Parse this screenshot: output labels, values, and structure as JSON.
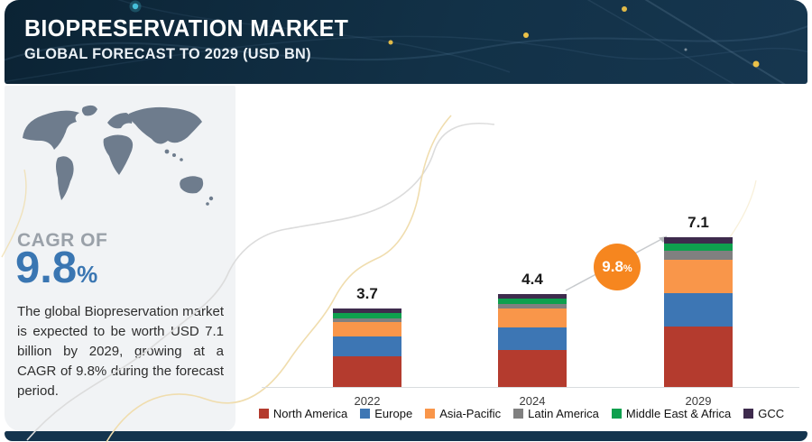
{
  "header": {
    "title": "BIOPRESERVATION MARKET",
    "subtitle": "GLOBAL FORECAST TO 2029 (USD BN)"
  },
  "sidebar": {
    "cagr_label": "CAGR OF",
    "cagr_value": "9.8",
    "cagr_unit": "%",
    "description": "The global Biopreservation market is expected to be worth USD 7.1 billion by 2029, growing at a CAGR of 9.8% during the forecast period."
  },
  "badge": {
    "value": "9.8",
    "unit": "%",
    "color": "#f6861f"
  },
  "chart_data": {
    "type": "bar",
    "stacked": true,
    "title": "Biopreservation Market, Global Forecast to 2029 (USD BN)",
    "xlabel": "",
    "ylabel": "USD BN",
    "grid": false,
    "legend_position": "bottom",
    "categories": [
      "2022",
      "2024",
      "2029"
    ],
    "totals": [
      3.7,
      4.4,
      7.1
    ],
    "series": [
      {
        "name": "North America",
        "color": "#b43b2e",
        "values": [
          1.44,
          1.75,
          2.88
        ]
      },
      {
        "name": "Europe",
        "color": "#3d76b4",
        "values": [
          0.94,
          1.07,
          1.56
        ]
      },
      {
        "name": "Asia-Pacific",
        "color": "#f9964a",
        "values": [
          0.69,
          0.88,
          1.58
        ]
      },
      {
        "name": "Latin America",
        "color": "#808080",
        "values": [
          0.19,
          0.21,
          0.43
        ]
      },
      {
        "name": "Middle East & Africa",
        "color": "#0ea04e",
        "values": [
          0.24,
          0.28,
          0.36
        ]
      },
      {
        "name": "GCC",
        "color": "#3e2b4d",
        "values": [
          0.2,
          0.21,
          0.29
        ]
      }
    ],
    "annotation": {
      "text": "9.8%",
      "between": [
        "2024",
        "2029"
      ]
    }
  },
  "colors": {
    "header_bg": "#11304a",
    "sidebar_bg": "#f1f3f5",
    "cagr_blue": "#3a76b2",
    "accent_orange": "#f6861f",
    "bottom_strip": "#14344e"
  }
}
